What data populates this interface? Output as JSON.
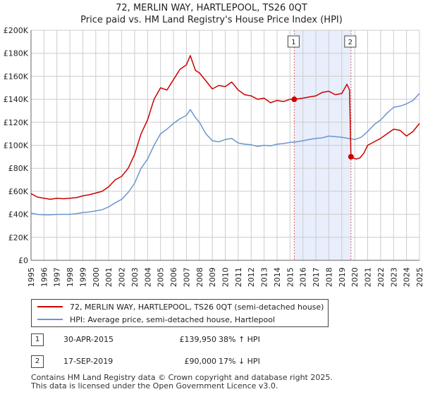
{
  "title_line1": "72, MERLIN WAY, HARTLEPOOL, TS26 0QT",
  "title_line2": "Price paid vs. HM Land Registry's House Price Index (HPI)",
  "colors": {
    "property": "#cc0000",
    "hpi": "#6a96cf",
    "shade": "#e8eefb",
    "grid": "#cccccc",
    "marker_line": "#e06060"
  },
  "chart_data": {
    "type": "line",
    "xlim": [
      1995.0,
      2025.0
    ],
    "ylim": [
      0,
      200000
    ],
    "y_ticks": [
      0,
      20000,
      40000,
      60000,
      80000,
      100000,
      120000,
      140000,
      160000,
      180000,
      200000
    ],
    "y_tick_labels": [
      "£0",
      "£20K",
      "£40K",
      "£60K",
      "£80K",
      "£100K",
      "£120K",
      "£140K",
      "£160K",
      "£180K",
      "£200K"
    ],
    "x_tick_labels": [
      "1995",
      "1996",
      "1997",
      "1998",
      "1999",
      "2000",
      "2001",
      "2002",
      "2003",
      "2004",
      "2005",
      "2006",
      "2007",
      "2008",
      "2009",
      "2010",
      "2011",
      "2012",
      "2013",
      "2014",
      "2015",
      "2016",
      "2017",
      "2018",
      "2019",
      "2020",
      "2021",
      "2022",
      "2023",
      "2024",
      "2025"
    ],
    "shaded_region": [
      2015.33,
      2019.71
    ],
    "markers": [
      {
        "label": "1",
        "x": 2015.33,
        "y": 139950
      },
      {
        "label": "2",
        "x": 2019.71,
        "y": 90000
      }
    ],
    "series": [
      {
        "name": "72, MERLIN WAY, HARTLEPOOL, TS26 0QT (semi-detached house)",
        "x": [
          1995.0,
          1995.5,
          1996.0,
          1996.5,
          1997.0,
          1997.5,
          1998.0,
          1998.5,
          1999.0,
          1999.5,
          2000.0,
          2000.5,
          2001.0,
          2001.5,
          2002.0,
          2002.5,
          2003.0,
          2003.5,
          2004.0,
          2004.5,
          2005.0,
          2005.5,
          2006.0,
          2006.5,
          2007.0,
          2007.3,
          2007.7,
          2008.0,
          2008.5,
          2009.0,
          2009.5,
          2010.0,
          2010.5,
          2011.0,
          2011.5,
          2012.0,
          2012.5,
          2013.0,
          2013.5,
          2014.0,
          2014.5,
          2015.0,
          2015.33,
          2015.7,
          2016.0,
          2016.5,
          2017.0,
          2017.5,
          2018.0,
          2018.5,
          2019.0,
          2019.4,
          2019.6,
          2019.71,
          2019.9,
          2020.1,
          2020.4,
          2020.7,
          2021.0,
          2021.5,
          2022.0,
          2022.5,
          2023.0,
          2023.5,
          2024.0,
          2024.5,
          2025.0
        ],
        "y": [
          58000,
          55000,
          54000,
          53000,
          54000,
          53500,
          54000,
          54500,
          56000,
          57000,
          58500,
          60000,
          64000,
          70000,
          73000,
          80000,
          92000,
          110000,
          122000,
          140000,
          150000,
          148000,
          157000,
          166000,
          170000,
          178000,
          165000,
          163000,
          156000,
          149000,
          152000,
          151000,
          155000,
          148000,
          144000,
          143000,
          140000,
          141000,
          137000,
          139000,
          138000,
          140000,
          139950,
          140500,
          141000,
          142000,
          143000,
          146000,
          147000,
          144000,
          145000,
          153000,
          148000,
          90000,
          89000,
          88000,
          89000,
          93000,
          100000,
          103000,
          106000,
          110000,
          114000,
          113000,
          108000,
          112000,
          119000
        ]
      },
      {
        "name": "HPI: Average price, semi-detached house, Hartlepool",
        "x": [
          1995.0,
          1995.5,
          1996.0,
          1996.5,
          1997.0,
          1997.5,
          1998.0,
          1998.5,
          1999.0,
          1999.5,
          2000.0,
          2000.5,
          2001.0,
          2001.5,
          2002.0,
          2002.5,
          2003.0,
          2003.5,
          2004.0,
          2004.5,
          2005.0,
          2005.5,
          2006.0,
          2006.5,
          2007.0,
          2007.3,
          2007.7,
          2008.0,
          2008.5,
          2009.0,
          2009.5,
          2010.0,
          2010.5,
          2011.0,
          2011.5,
          2012.0,
          2012.5,
          2013.0,
          2013.5,
          2014.0,
          2014.5,
          2015.0,
          2015.5,
          2016.0,
          2016.5,
          2017.0,
          2017.5,
          2018.0,
          2018.5,
          2019.0,
          2019.5,
          2020.0,
          2020.5,
          2021.0,
          2021.5,
          2022.0,
          2022.5,
          2023.0,
          2023.5,
          2024.0,
          2024.5,
          2025.0
        ],
        "y": [
          41000,
          40000,
          39500,
          39500,
          40000,
          40000,
          40000,
          40500,
          41500,
          42000,
          43000,
          44000,
          46500,
          50000,
          53000,
          59000,
          67000,
          80000,
          88000,
          100000,
          110000,
          114000,
          119000,
          123000,
          126000,
          131000,
          124000,
          120000,
          110000,
          104000,
          103000,
          105000,
          106000,
          102000,
          101000,
          100500,
          99000,
          100000,
          99500,
          101000,
          101500,
          102500,
          103000,
          104000,
          105000,
          106000,
          106500,
          108000,
          107500,
          107000,
          106000,
          105000,
          107000,
          112000,
          118000,
          122000,
          128000,
          133000,
          134000,
          136000,
          139000,
          145000
        ]
      }
    ]
  },
  "legend": {
    "property_label": "72, MERLIN WAY, HARTLEPOOL, TS26 0QT (semi-detached house)",
    "hpi_label": "HPI: Average price, semi-detached house, Hartlepool"
  },
  "transactions": [
    {
      "label": "1",
      "date": "30-APR-2015",
      "price": "£139,950",
      "hpi": "38% ↑ HPI"
    },
    {
      "label": "2",
      "date": "17-SEP-2019",
      "price": "£90,000",
      "hpi": "17% ↓ HPI"
    }
  ],
  "footer_line1": "Contains HM Land Registry data © Crown copyright and database right 2025.",
  "footer_line2": "This data is licensed under the Open Government Licence v3.0."
}
